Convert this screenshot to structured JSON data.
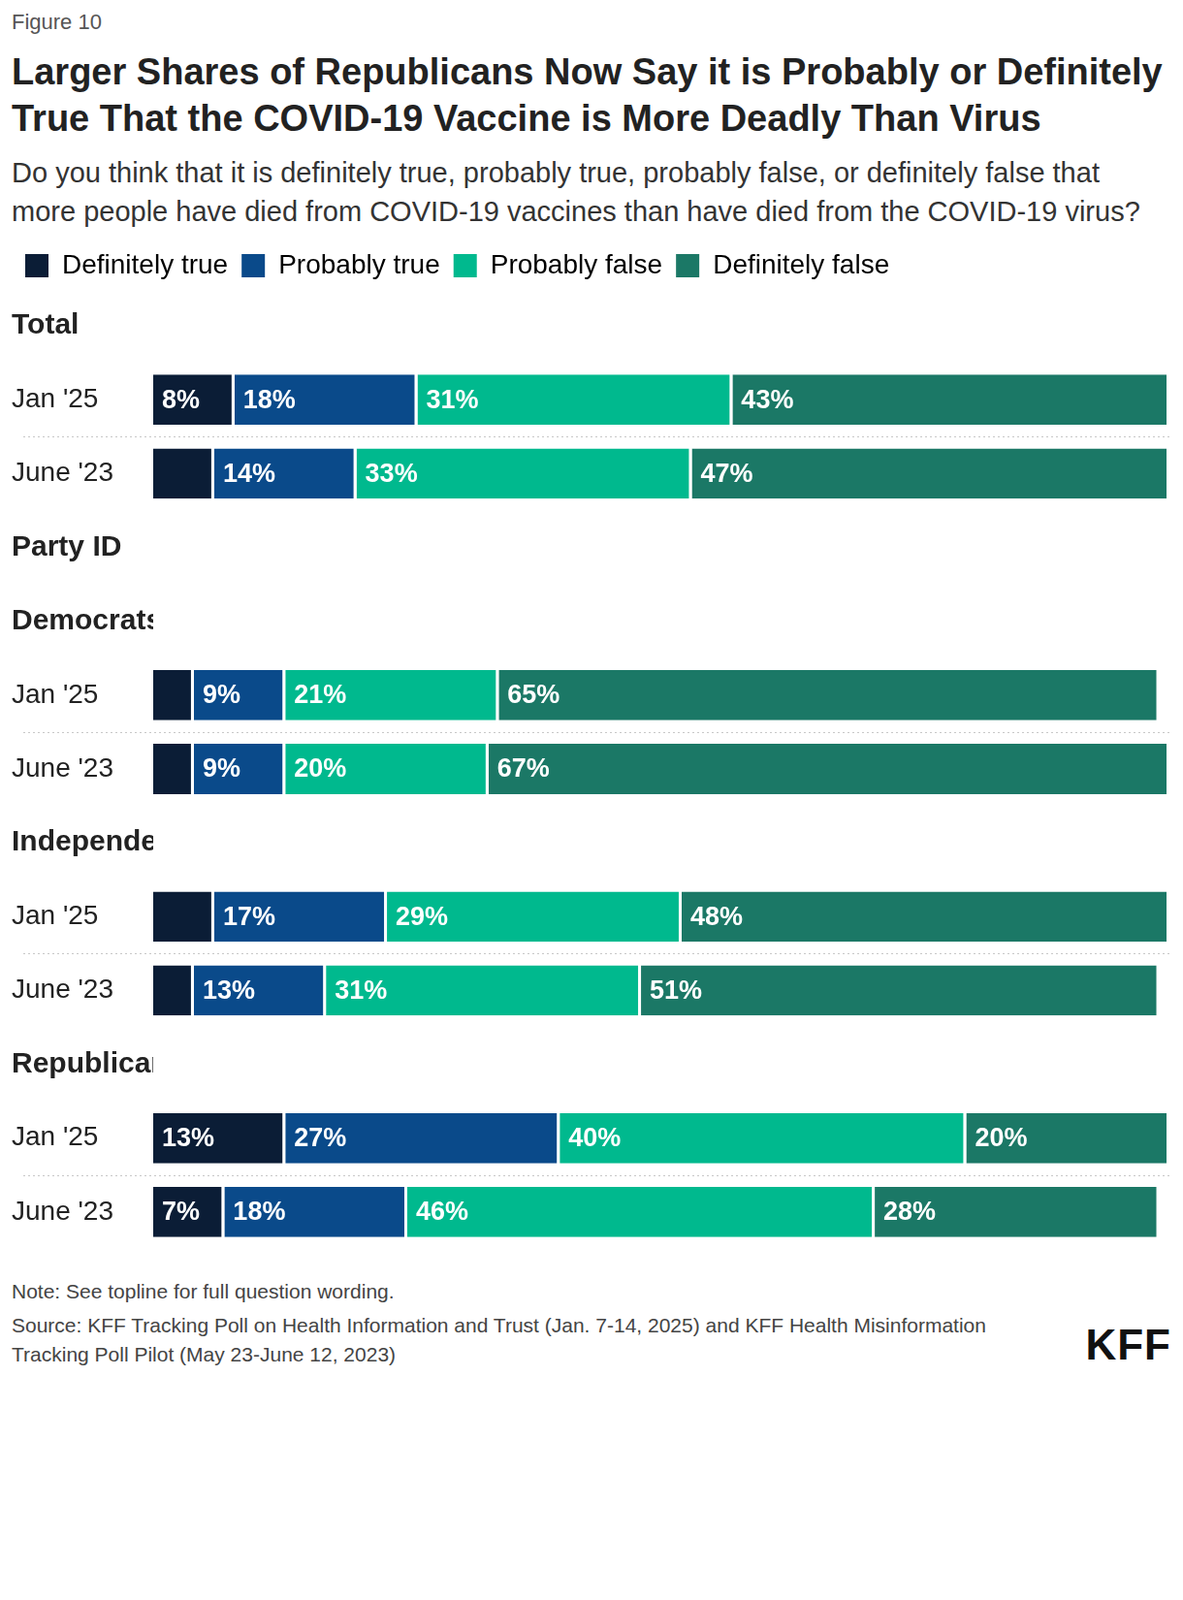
{
  "chart_data": {
    "type": "bar",
    "orientation": "horizontal",
    "stacked": true,
    "data_labels": true,
    "tick_labels": "y",
    "grid": false,
    "legend": "top-left",
    "figure_label": "Figure 10",
    "title": "Larger Shares of Republicans Now Say it is Probably or Definitely True That the COVID-19 Vaccine is More Deadly Than Virus",
    "subtitle": "Do you think that it is definitely true, probably true, probably false, or definitely false that more people have died from COVID-19 vaccines than have died from the COVID-19 virus?",
    "note": "Note: See topline for full question wording.",
    "source": "Source: KFF Tracking Poll on Health Information and Trust (Jan. 7-14, 2025) and KFF Health Misinformation Tracking Poll Pilot (May 23-June 12, 2023)",
    "brand": "KFF",
    "headings": [
      "Total",
      "Party ID",
      "Democrats",
      "Independents",
      "Republicans"
    ],
    "categories": [
      "Total",
      "Jan '25",
      "June '23",
      "Party ID",
      "Democrats",
      "Jan '25",
      "June '23",
      "Independents",
      "Jan '25",
      "June '23",
      "Republicans",
      "Jan '25",
      "June '23"
    ],
    "xlim": [
      0,
      100
    ],
    "series": [
      {
        "name": "Definitely true",
        "color": "#0b1d36",
        "values": [
          null,
          8,
          6,
          null,
          null,
          4,
          4,
          null,
          6,
          4,
          null,
          13,
          7
        ],
        "value_labels": [
          null,
          "8%",
          null,
          null,
          null,
          null,
          null,
          null,
          null,
          null,
          null,
          "13%",
          "7%"
        ]
      },
      {
        "name": "Probably true",
        "color": "#0a4a8a",
        "values": [
          null,
          18,
          14,
          null,
          null,
          9,
          9,
          null,
          17,
          13,
          null,
          27,
          18
        ],
        "value_labels": [
          null,
          "18%",
          "14%",
          null,
          null,
          "9%",
          "9%",
          null,
          "17%",
          "13%",
          null,
          "27%",
          "18%"
        ]
      },
      {
        "name": "Probably false",
        "color": "#00b98e",
        "values": [
          null,
          31,
          33,
          null,
          null,
          21,
          20,
          null,
          29,
          31,
          null,
          40,
          46
        ],
        "value_labels": [
          null,
          "31%",
          "33%",
          null,
          null,
          "21%",
          "20%",
          null,
          "29%",
          "31%",
          null,
          "40%",
          "46%"
        ]
      },
      {
        "name": "Definitely false",
        "color": "#1b7866",
        "values": [
          null,
          43,
          47,
          null,
          null,
          65,
          67,
          null,
          48,
          51,
          null,
          20,
          28
        ],
        "value_labels": [
          null,
          "43%",
          "47%",
          null,
          null,
          "65%",
          "67%",
          null,
          "48%",
          "51%",
          null,
          "20%",
          "28%"
        ]
      }
    ]
  }
}
